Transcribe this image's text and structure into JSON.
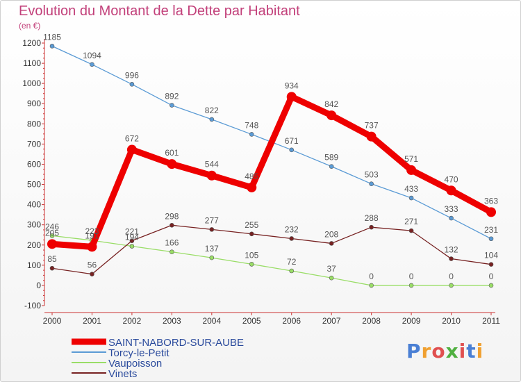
{
  "header": {
    "title": "Evolution du Montant de la Dette par Habitant",
    "unit": "(en €)"
  },
  "logo": {
    "text": "Proxiti",
    "letters": [
      "P",
      "r",
      "o",
      "x",
      "i",
      "t",
      "i"
    ],
    "colors": [
      "#4a7fd4",
      "#f0a030",
      "#e05050",
      "#50b040",
      "#e05050",
      "#4a7fd4",
      "#f0a030"
    ]
  },
  "chart_data": {
    "type": "line",
    "title": "Evolution du Montant de la Dette par Habitant",
    "ylabel": "(en €)",
    "xlabel": "",
    "x": [
      "2000",
      "2001",
      "2002",
      "2003",
      "2004",
      "2005",
      "2006",
      "2007",
      "2008",
      "2009",
      "2010",
      "2011"
    ],
    "ylim": [
      -100,
      1200
    ],
    "yticks": [
      -100,
      0,
      100,
      200,
      300,
      400,
      500,
      600,
      700,
      800,
      900,
      1000,
      1100,
      1200
    ],
    "grid": false,
    "legend_position": "bottom-left",
    "series": [
      {
        "name": "SAINT-NABORD-SUR-AUBE",
        "color": "#ee0000",
        "values": [
          205,
          191,
          672,
          601,
          544,
          485,
          934,
          842,
          737,
          571,
          470,
          363
        ],
        "labels": [
          "205",
          "191",
          "672",
          "601",
          "544",
          "485",
          "934",
          "842",
          "737",
          "571",
          "470",
          "363"
        ]
      },
      {
        "name": "Torcy-le-Petit",
        "color": "#5b9bd5",
        "values": [
          1185,
          1094,
          996,
          892,
          822,
          748,
          671,
          589,
          503,
          433,
          333,
          231
        ],
        "labels": [
          "1185",
          "1094",
          "996",
          "892",
          "822",
          "748",
          "671",
          "589",
          "503",
          "433",
          "333",
          "231"
        ]
      },
      {
        "name": "Vaupoisson",
        "color": "#99dd66",
        "values": [
          246,
          223,
          194,
          166,
          137,
          105,
          72,
          37,
          0,
          0,
          0,
          0
        ],
        "labels": [
          "246",
          "223",
          "194",
          "166",
          "137",
          "105",
          "72",
          "37",
          "0",
          "0",
          "0",
          "0"
        ]
      },
      {
        "name": "Vinets",
        "color": "#772222",
        "values": [
          85,
          56,
          221,
          298,
          277,
          255,
          232,
          208,
          288,
          271,
          132,
          104
        ],
        "labels": [
          "85",
          "56",
          "221",
          "298",
          "277",
          "255",
          "232",
          "208",
          "288",
          "271",
          "132",
          "104"
        ]
      }
    ]
  }
}
